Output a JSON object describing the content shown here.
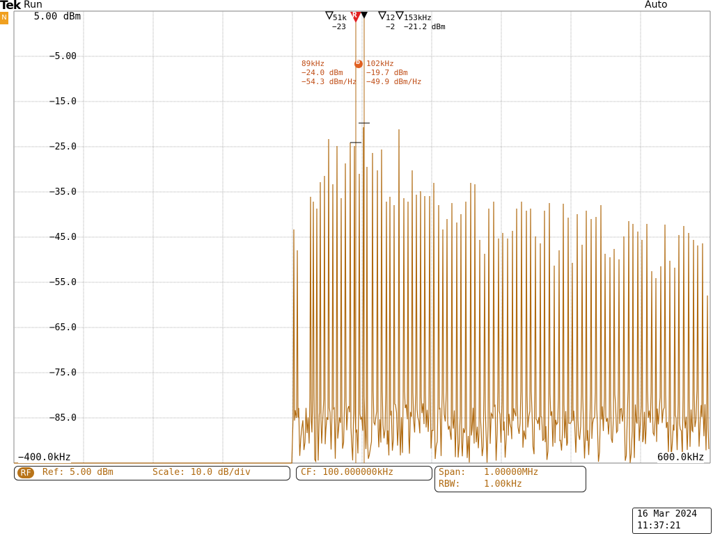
{
  "header": {
    "brand": "Tek",
    "ch_badge": "N",
    "status": "Run",
    "trigger_mode": "Auto"
  },
  "colors": {
    "trace": "#b06a10",
    "marker": "#c0501a",
    "ref_marker": "#e02020",
    "rf_badge": "#b8741a",
    "grid": "#999999"
  },
  "axis": {
    "y_labels": [
      "5.00 dBm",
      "−5.00",
      "−15.0",
      "−25.0",
      "−35.0",
      "−45.0",
      "−55.0",
      "−65.0",
      "−75.0",
      "−85.0"
    ],
    "x_start": "−400.0kHz",
    "x_end": "600.0kHz"
  },
  "top_markers": [
    {
      "freq": "51k",
      "level": "−23"
    },
    {
      "freq": "12",
      "level": "−2"
    },
    {
      "freq": "153kHz",
      "level": "−21.2 dBm"
    }
  ],
  "ref_marker_label": "R",
  "markers": {
    "left": {
      "freq": "89kHz",
      "amp": "−24.0 dBm",
      "density": "−54.3 dBm/Hz"
    },
    "right": {
      "freq": "102kHz",
      "amp": "−19.7 dBm",
      "density": "−49.9 dBm/Hz"
    },
    "active_label": "b"
  },
  "settings": {
    "rf_badge": "RF",
    "ref": "Ref: 5.00 dBm",
    "scale": "Scale: 10.0 dB/div",
    "cf": "CF:  100.000000kHz",
    "span_label": "Span:",
    "span_value": "1.00000MHz",
    "rbw_label": "RBW:",
    "rbw_value": "1.00kHz"
  },
  "datetime": {
    "date": "16 Mar  2024",
    "time": "11:37:21"
  }
}
